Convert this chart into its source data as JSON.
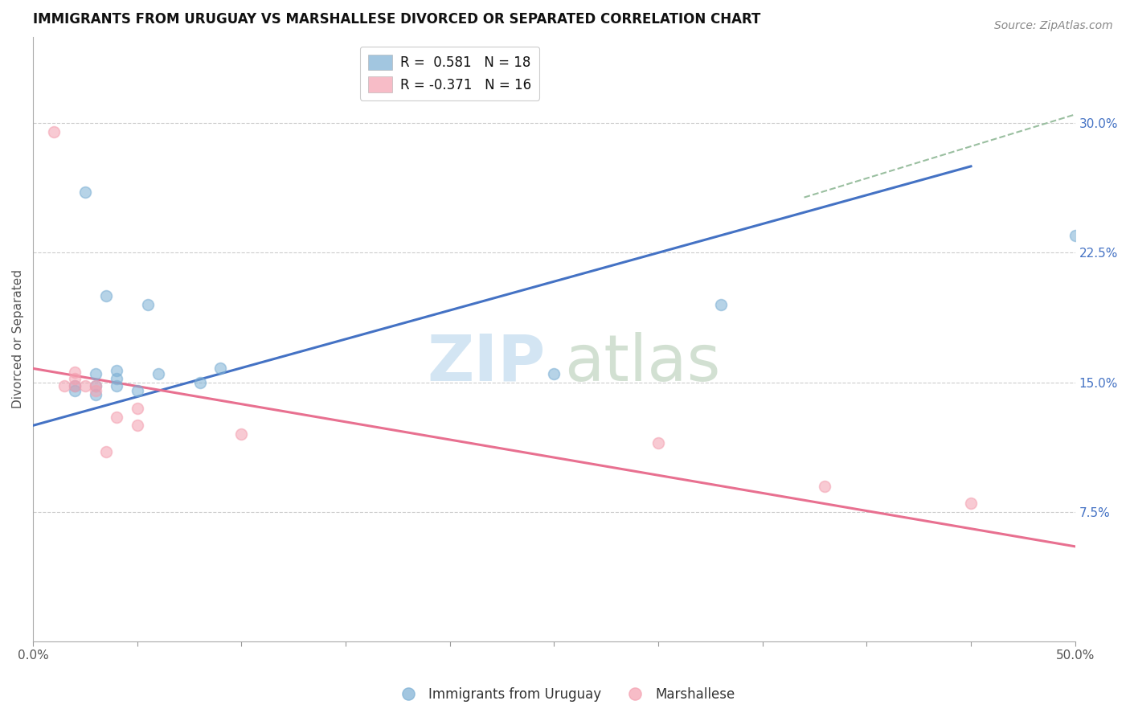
{
  "title": "IMMIGRANTS FROM URUGUAY VS MARSHALLESE DIVORCED OR SEPARATED CORRELATION CHART",
  "source": "Source: ZipAtlas.com",
  "ylabel": "Divorced or Separated",
  "xlim": [
    0.0,
    0.5
  ],
  "ylim": [
    0.0,
    0.35
  ],
  "x_ticks": [
    0.0,
    0.05,
    0.1,
    0.15,
    0.2,
    0.25,
    0.3,
    0.35,
    0.4,
    0.45,
    0.5
  ],
  "x_tick_labels_show": [
    "0.0%",
    "50.0%"
  ],
  "y_ticks_right": [
    0.075,
    0.15,
    0.225,
    0.3
  ],
  "y_tick_labels_right": [
    "7.5%",
    "15.0%",
    "22.5%",
    "30.0%"
  ],
  "legend_entry1_label": "R =  0.581   N = 18",
  "legend_entry2_label": "R = -0.371   N = 16",
  "blue_color": "#7BAFD4",
  "pink_color": "#F4A0B0",
  "blue_line_color": "#4472C4",
  "pink_line_color": "#E87090",
  "dashed_line_color": "#9ABFA0",
  "blue_scatter_x": [
    0.02,
    0.02,
    0.025,
    0.03,
    0.03,
    0.03,
    0.035,
    0.04,
    0.04,
    0.04,
    0.05,
    0.055,
    0.06,
    0.08,
    0.09,
    0.25,
    0.33,
    0.5
  ],
  "blue_scatter_y": [
    0.145,
    0.148,
    0.26,
    0.143,
    0.148,
    0.155,
    0.2,
    0.148,
    0.152,
    0.157,
    0.145,
    0.195,
    0.155,
    0.15,
    0.158,
    0.155,
    0.195,
    0.235
  ],
  "pink_scatter_x": [
    0.01,
    0.015,
    0.02,
    0.02,
    0.02,
    0.025,
    0.03,
    0.03,
    0.035,
    0.04,
    0.05,
    0.05,
    0.1,
    0.3,
    0.38,
    0.45
  ],
  "pink_scatter_y": [
    0.295,
    0.148,
    0.148,
    0.152,
    0.156,
    0.148,
    0.145,
    0.148,
    0.11,
    0.13,
    0.125,
    0.135,
    0.12,
    0.115,
    0.09,
    0.08
  ],
  "blue_line_x": [
    0.0,
    0.45
  ],
  "blue_line_y": [
    0.125,
    0.275
  ],
  "pink_line_x": [
    0.0,
    0.5
  ],
  "pink_line_y": [
    0.158,
    0.055
  ],
  "dashed_line_x": [
    0.37,
    0.5
  ],
  "dashed_line_y": [
    0.257,
    0.305
  ],
  "gridline_y": [
    0.075,
    0.15,
    0.225,
    0.3
  ],
  "title_fontsize": 12,
  "axis_label_fontsize": 11,
  "tick_fontsize": 11,
  "legend_fontsize": 12,
  "source_fontsize": 10,
  "scatter_size": 100
}
